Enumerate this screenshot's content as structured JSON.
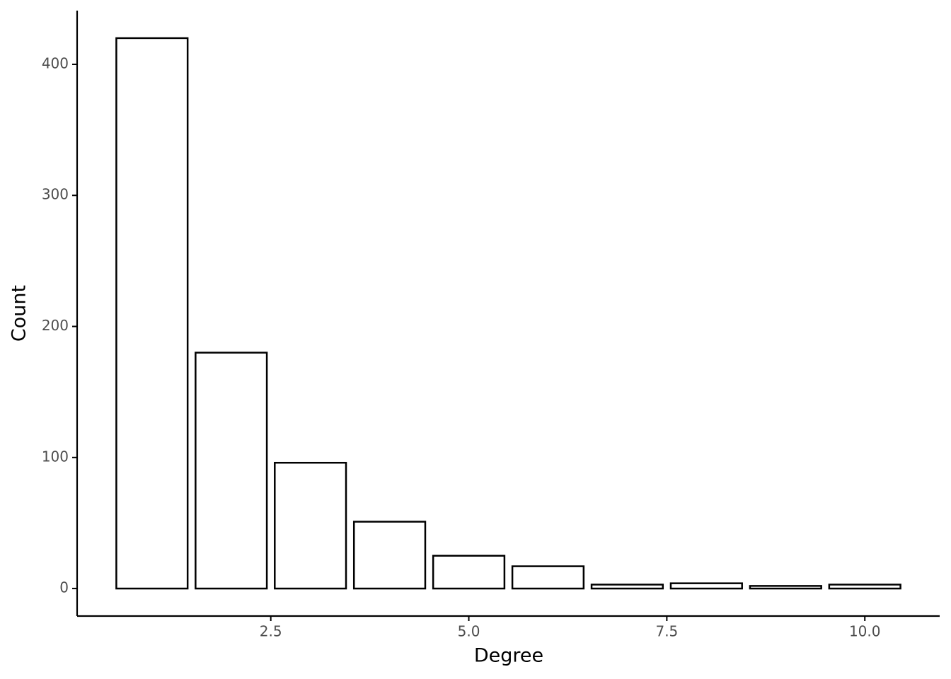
{
  "chart_data": {
    "type": "bar",
    "x_label": "Degree",
    "y_label": "Count",
    "x": [
      1,
      2,
      3,
      4,
      5,
      6,
      7,
      8,
      9,
      10
    ],
    "values": [
      420,
      180,
      96,
      51,
      25,
      17,
      3,
      4,
      2,
      3
    ],
    "color": "#ffffff",
    "edge_color": "#000000",
    "xlim": [
      0.055,
      10.945
    ],
    "xticks": [
      2.5,
      {
        "value": 5,
        "label": "5.0"
      },
      7.5,
      {
        "value": 10,
        "label": "10.0"
      }
    ],
    "ylim": [
      -21,
      441
    ],
    "yticks": [
      0,
      100,
      200,
      300,
      400
    ],
    "grid": false
  }
}
